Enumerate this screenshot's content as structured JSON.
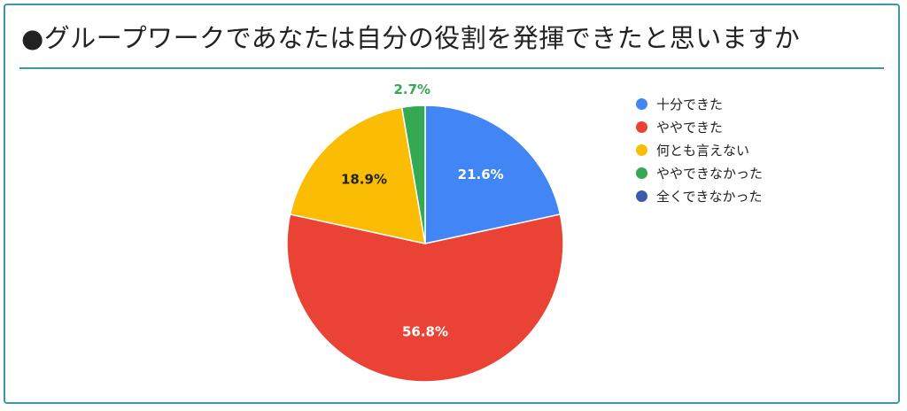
{
  "title": "●グループワークであなたは自分の役割を発揮できたと思いますか",
  "chart_data": {
    "type": "pie",
    "title": "●グループワークであなたは自分の役割を発揮できたと思いますか",
    "legend_position": "right",
    "slices": [
      {
        "label": "十分できた",
        "value": 21.6,
        "display": "21.6%",
        "color": "#4285f4",
        "label_color": "#ffffff"
      },
      {
        "label": "ややできた",
        "value": 56.8,
        "display": "56.8%",
        "color": "#ea4335",
        "label_color": "#ffffff"
      },
      {
        "label": "何とも言えない",
        "value": 18.9,
        "display": "18.9%",
        "color": "#fbbc04",
        "label_color": "#222222"
      },
      {
        "label": "ややできなかった",
        "value": 2.7,
        "display": "2.7%",
        "color": "#34a853",
        "label_color": "#34a853"
      },
      {
        "label": "全くできなかった",
        "value": 0,
        "display": "",
        "color": "#3b5bab",
        "label_color": "#ffffff"
      }
    ]
  }
}
